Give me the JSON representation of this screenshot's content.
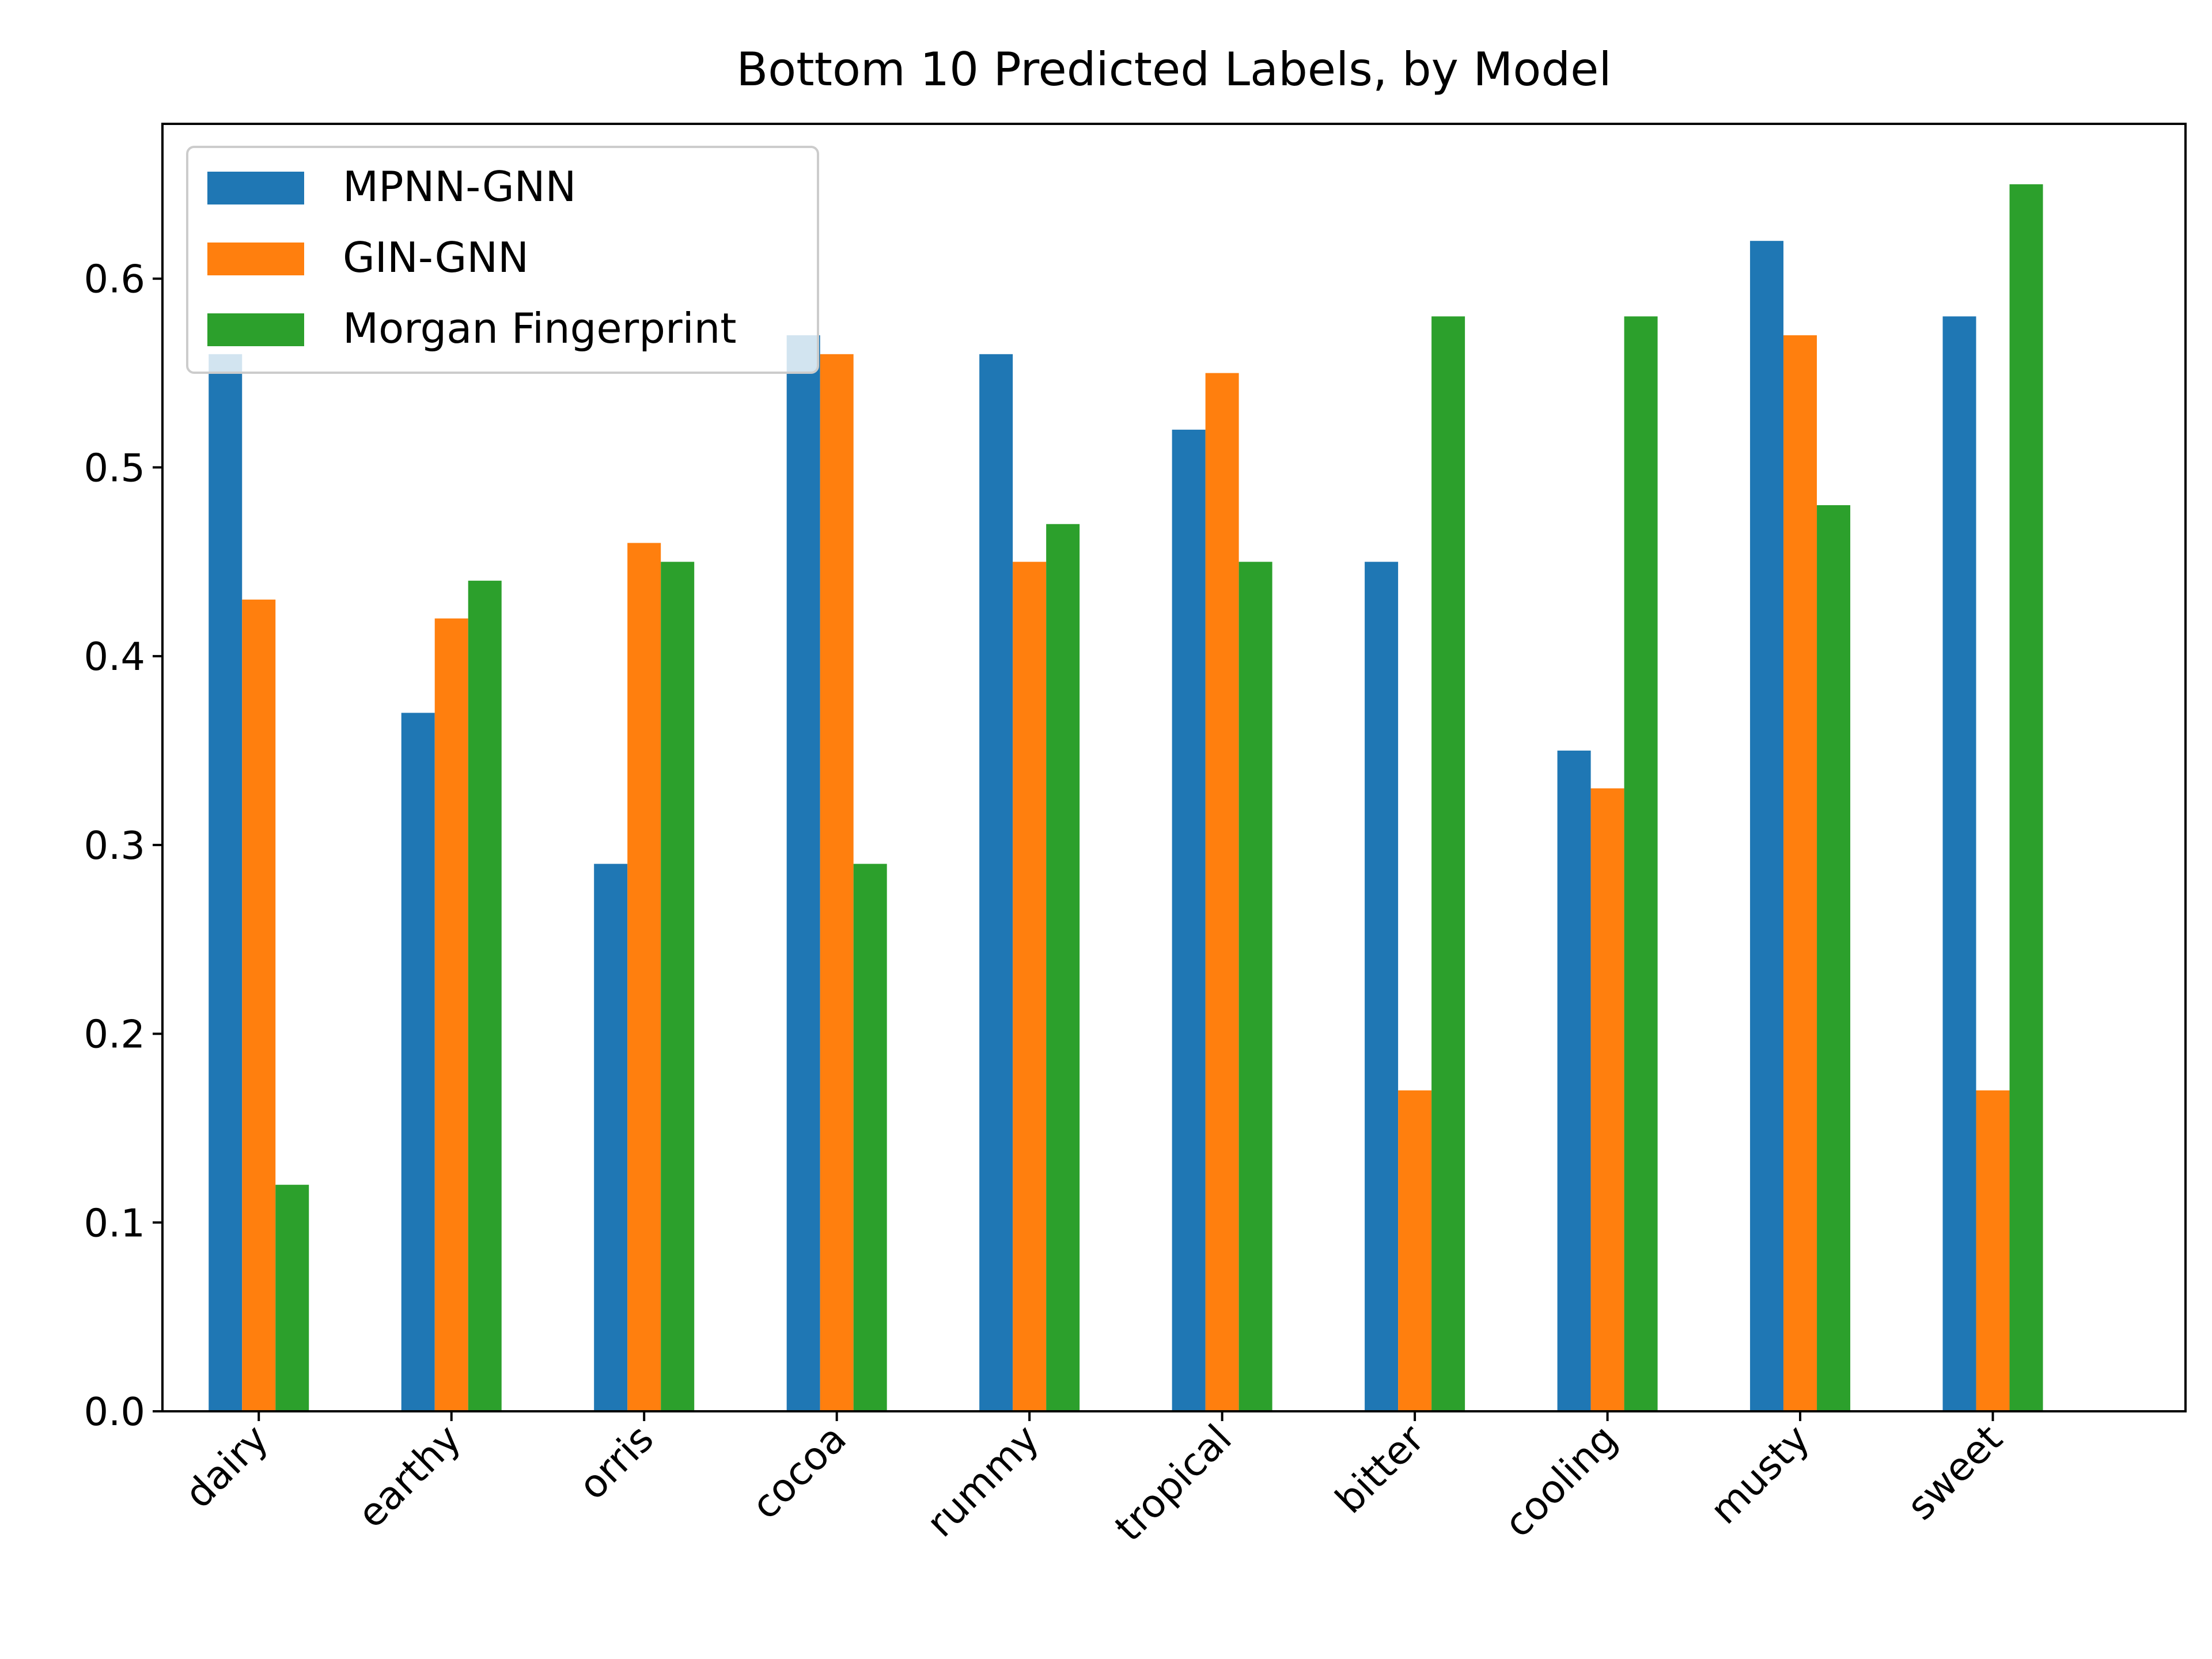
{
  "chart_data": {
    "type": "bar",
    "title": "Bottom 10 Predicted Labels, by Model",
    "xlabel": "",
    "ylabel": "",
    "categories": [
      "dairy",
      "earthy",
      "orris",
      "cocoa",
      "rummy",
      "tropical",
      "bitter",
      "cooling",
      "musty",
      "sweet"
    ],
    "series": [
      {
        "name": "MPNN-GNN",
        "color": "#1f77b4",
        "values": [
          0.56,
          0.37,
          0.29,
          0.57,
          0.56,
          0.52,
          0.45,
          0.35,
          0.62,
          0.58
        ]
      },
      {
        "name": "GIN-GNN",
        "color": "#ff7f0e",
        "values": [
          0.43,
          0.42,
          0.46,
          0.56,
          0.45,
          0.55,
          0.17,
          0.33,
          0.57,
          0.17
        ]
      },
      {
        "name": "Morgan Fingerprint",
        "color": "#2ca02c",
        "values": [
          0.12,
          0.44,
          0.45,
          0.29,
          0.47,
          0.45,
          0.58,
          0.58,
          0.48,
          0.65
        ]
      }
    ],
    "ylim": [
      0,
      0.682
    ],
    "yticks": [
      "0.0",
      "0.1",
      "0.2",
      "0.3",
      "0.4",
      "0.5",
      "0.6"
    ],
    "legend_position": "top-left",
    "grid": false
  }
}
